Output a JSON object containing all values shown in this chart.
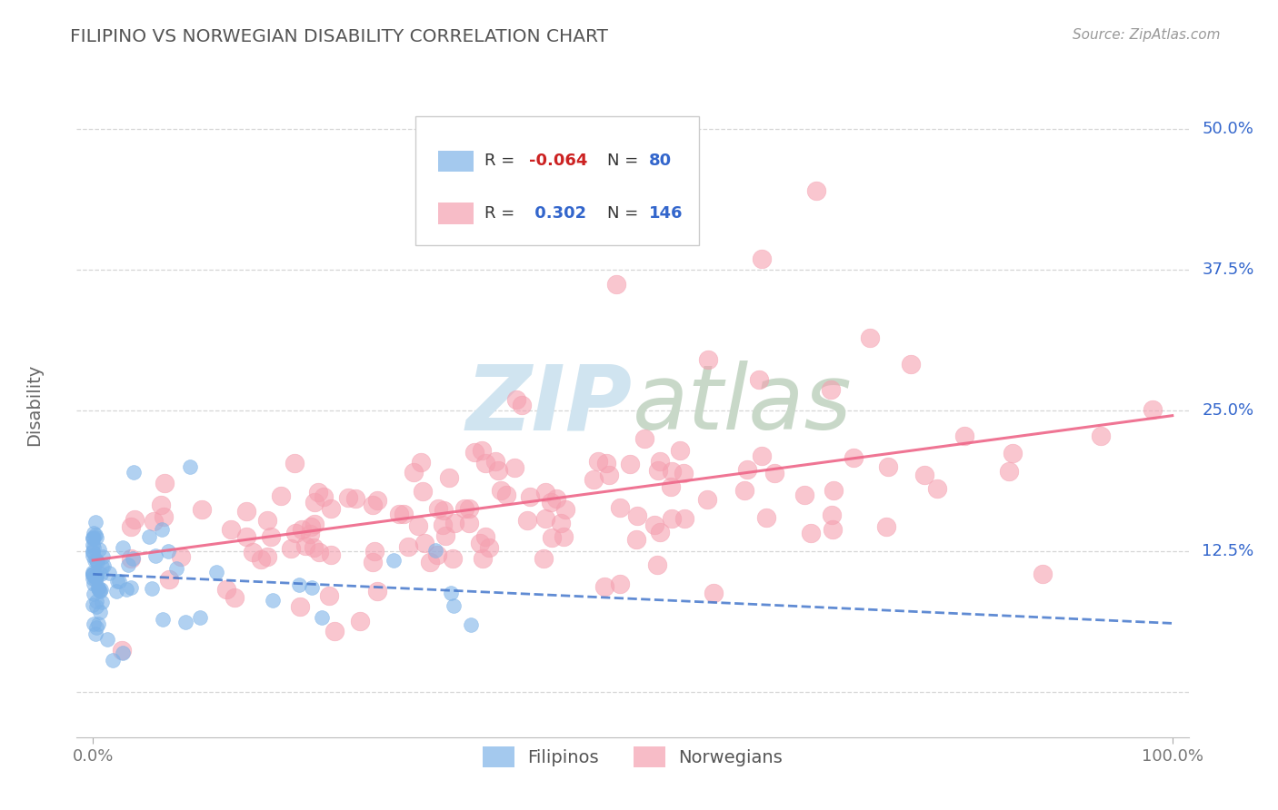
{
  "title": "FILIPINO VS NORWEGIAN DISABILITY CORRELATION CHART",
  "source": "Source: ZipAtlas.com",
  "ylabel": "Disability",
  "yticks": [
    0.0,
    0.125,
    0.25,
    0.375,
    0.5
  ],
  "ytick_labels": [
    "",
    "12.5%",
    "25.0%",
    "37.5%",
    "50.0%"
  ],
  "xlim": [
    -0.015,
    1.015
  ],
  "ylim": [
    -0.04,
    0.55
  ],
  "filipino_R": -0.064,
  "filipino_N": 80,
  "norwegian_R": 0.302,
  "norwegian_N": 146,
  "filipino_color": "#7EB3E8",
  "norwegian_color": "#F5A0B0",
  "filipino_line_color": "#4477CC",
  "norwegian_line_color": "#EE6688",
  "background_color": "#FFFFFF",
  "grid_color": "#CCCCCC",
  "title_color": "#555555",
  "axis_label_color": "#3366CC",
  "watermark_text": "ZIPatlas",
  "watermark_color": "#D0E4F0"
}
